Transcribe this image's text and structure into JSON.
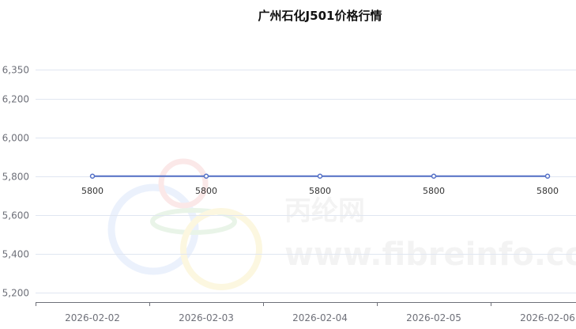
{
  "chart_data": {
    "type": "line",
    "title": "广州石化J501价格行情",
    "categories": [
      "2026-02-02",
      "2026-02-03",
      "2026-02-04",
      "2026-02-05",
      "2026-02-06"
    ],
    "series": [
      {
        "values": [
          5800,
          5800,
          5800,
          5800,
          5800
        ],
        "color": "#5470c6"
      }
    ],
    "data_labels": [
      "5800",
      "5800",
      "5800",
      "5800",
      "5800"
    ],
    "yticks": [
      5200,
      5400,
      5600,
      5800,
      6000,
      6200,
      6350
    ],
    "ytick_labels": [
      "5,200",
      "5,400",
      "5,600",
      "5,800",
      "6,000",
      "6,200",
      "6,350"
    ],
    "ylim": [
      5150,
      6350
    ],
    "grid": true,
    "xlabel": "",
    "ylabel": ""
  },
  "watermark": {
    "cn": "丙纶网",
    "url": "www.fibreinfo.com"
  }
}
